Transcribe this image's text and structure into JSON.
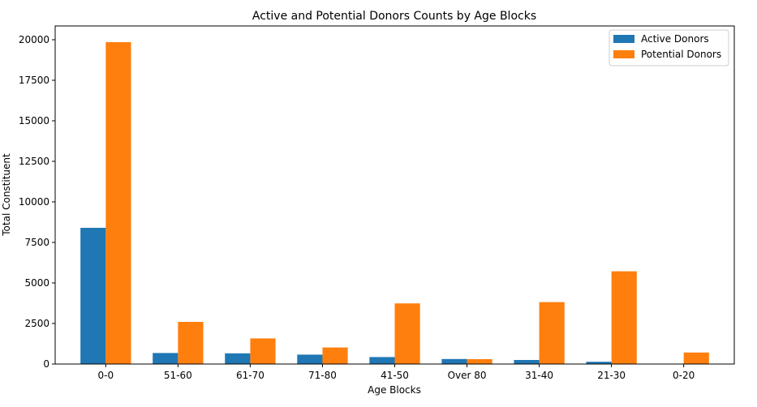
{
  "chart_data": {
    "type": "bar",
    "title": "Active and Potential Donors Counts by Age Blocks",
    "xlabel": "Age Blocks",
    "ylabel": "Total Constituent",
    "categories": [
      "0-0",
      "51-60",
      "61-70",
      "71-80",
      "41-50",
      "Over 80",
      "31-40",
      "21-30",
      "0-20"
    ],
    "series": [
      {
        "name": "Active Donors",
        "color": "#1f77b4",
        "values": [
          8400,
          680,
          660,
          580,
          430,
          310,
          250,
          140,
          0
        ]
      },
      {
        "name": "Potential Donors",
        "color": "#ff7f0e",
        "values": [
          19850,
          2600,
          1580,
          1020,
          3740,
          300,
          3820,
          5720,
          710
        ]
      }
    ],
    "ylim": [
      0,
      20850
    ],
    "yticks": [
      0,
      2500,
      5000,
      7500,
      10000,
      12500,
      15000,
      17500,
      20000
    ],
    "ytick_labels": [
      "0",
      "2500",
      "5000",
      "7500",
      "10000",
      "12500",
      "15000",
      "17500",
      "20000"
    ],
    "legend_position": "top-right",
    "grid": false
  }
}
